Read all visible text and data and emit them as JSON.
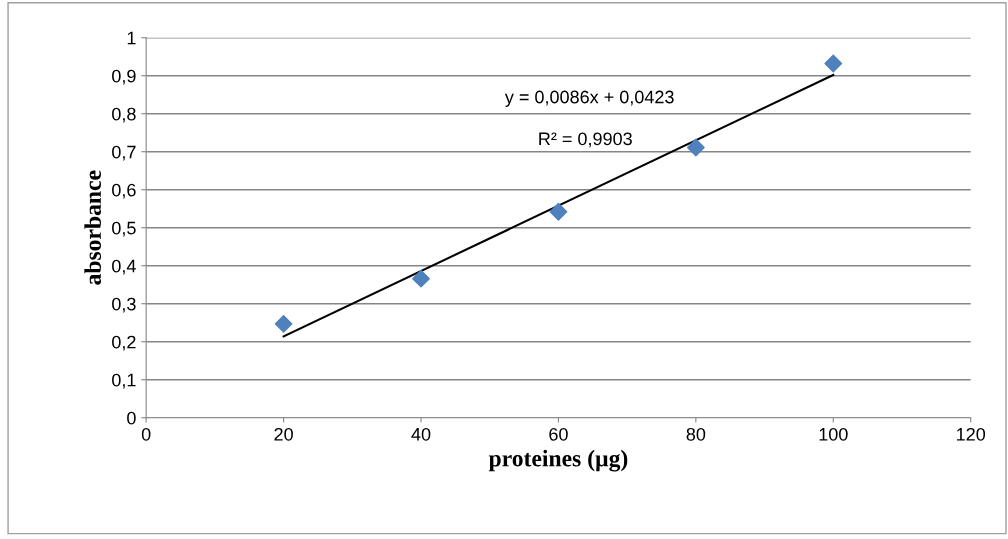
{
  "chart_data": {
    "type": "scatter",
    "xlabel": "proteines (µg)",
    "ylabel": "absorbance",
    "x": [
      20,
      40,
      60,
      80,
      100
    ],
    "series": [
      {
        "color": "#4f81bd",
        "marker": "diamond",
        "values": [
          0.247,
          0.366,
          0.542,
          0.711,
          0.932
        ]
      },
      {
        "type": "line",
        "color": "#000000",
        "marker": "none",
        "line_style": "solid",
        "x": [
          20,
          100
        ],
        "values": [
          0.214,
          0.902
        ]
      }
    ],
    "annotations": [
      "y = 0,0086x + 0,0423",
      "R² = 0,9903"
    ],
    "xlim": [
      0,
      120
    ],
    "xticks": [
      0,
      20,
      40,
      60,
      80,
      100,
      120
    ],
    "ylim": [
      0,
      1
    ],
    "yticks": [
      0,
      {
        "value": 0.1,
        "label": "0,1"
      },
      {
        "value": 0.2,
        "label": "0,2"
      },
      {
        "value": 0.3,
        "label": "0,3"
      },
      {
        "value": 0.4,
        "label": "0,4"
      },
      {
        "value": 0.5,
        "label": "0,5"
      },
      {
        "value": 0.6,
        "label": "0,6"
      },
      {
        "value": 0.7,
        "label": "0,7"
      },
      {
        "value": 0.8,
        "label": "0,8"
      },
      {
        "value": 0.9,
        "label": "0,9"
      },
      1
    ],
    "grid": "y",
    "legend": false
  }
}
